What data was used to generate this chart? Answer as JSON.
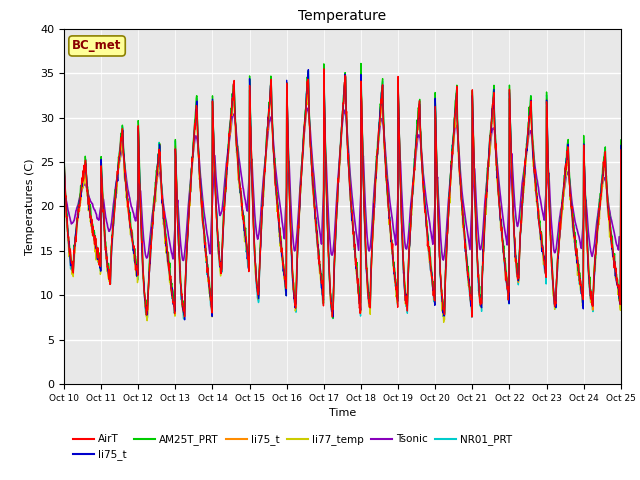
{
  "title": "Temperature",
  "xlabel": "Time",
  "ylabel": "Temperatures (C)",
  "ylim": [
    0,
    40
  ],
  "bg_color": "#E8E8E8",
  "annotation_text": "BC_met",
  "annotation_color": "#8B0000",
  "annotation_bg": "#FFFF99",
  "annotation_border": "#8B8000",
  "series": {
    "AirT": {
      "color": "#FF0000",
      "lw": 1.0
    },
    "li75_t_b": {
      "color": "#0000CC",
      "lw": 1.0
    },
    "AM25T_PRT": {
      "color": "#00CC00",
      "lw": 1.0
    },
    "li75_t_o": {
      "color": "#FF8C00",
      "lw": 1.0
    },
    "li77_temp": {
      "color": "#CCCC00",
      "lw": 1.0
    },
    "Tsonic": {
      "color": "#8800BB",
      "lw": 1.2
    },
    "NR01_PRT": {
      "color": "#00CCCC",
      "lw": 1.0
    }
  },
  "legend_entries": [
    {
      "label": "AirT",
      "color": "#FF0000"
    },
    {
      "label": "li75_t",
      "color": "#0000CC"
    },
    {
      "label": "AM25T_PRT",
      "color": "#00CC00"
    },
    {
      "label": "li75_t",
      "color": "#FF8C00"
    },
    {
      "label": "li77_temp",
      "color": "#CCCC00"
    },
    {
      "label": "Tsonic",
      "color": "#8800BB"
    },
    {
      "label": "NR01_PRT",
      "color": "#00CCCC"
    }
  ],
  "x_tick_labels": [
    "Oct 10",
    "Oct 11",
    "Oct 12",
    "Oct 13",
    "Oct 14",
    "Oct 15",
    "Oct 16",
    "Oct 17",
    "Oct 18",
    "Oct 19",
    "Oct 20",
    "Oct 21",
    "Oct 22",
    "Oct 23",
    "Oct 24",
    "Oct 25"
  ]
}
